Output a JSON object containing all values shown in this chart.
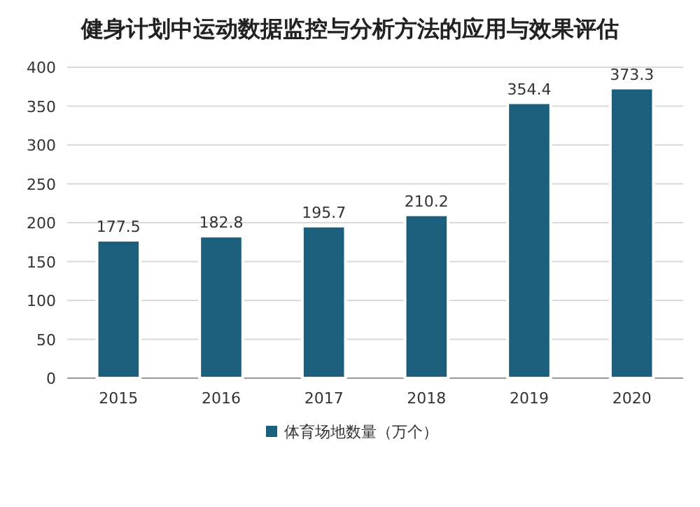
{
  "chart_data": {
    "type": "bar",
    "title": "健身计划中运动数据监控与分析方法的应用与效果评估",
    "categories": [
      "2015",
      "2016",
      "2017",
      "2018",
      "2019",
      "2020"
    ],
    "series": [
      {
        "name": "体育场地数量（万个）",
        "color": "#1c5f7c",
        "values": [
          177.5,
          182.8,
          195.7,
          210.2,
          354.4,
          373.3
        ]
      }
    ],
    "ylim": [
      0,
      400
    ],
    "yticks": [
      0,
      50,
      100,
      150,
      200,
      250,
      300,
      350,
      400
    ],
    "grid": "y",
    "legend": "bottom",
    "data_labels": true
  }
}
